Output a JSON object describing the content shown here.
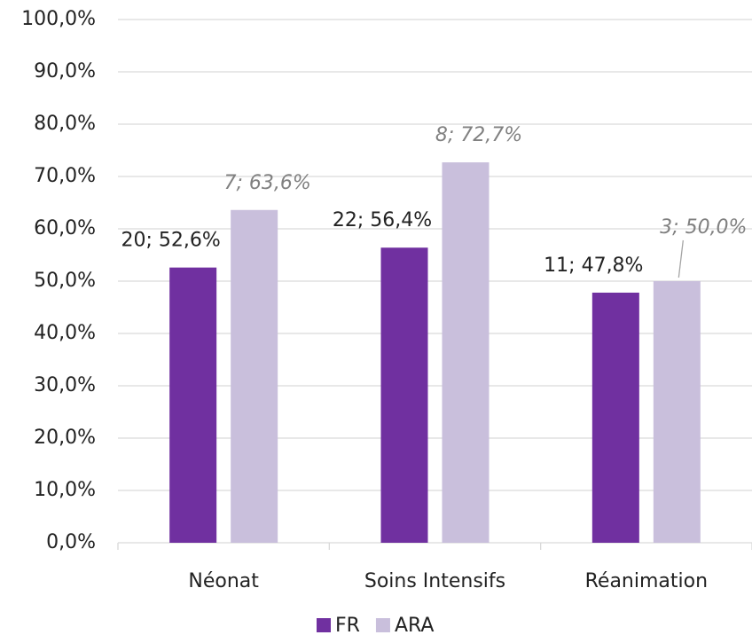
{
  "chart_data": {
    "type": "bar",
    "categories": [
      "Néonat",
      "Soins Intensifs",
      "Réanimation"
    ],
    "series": [
      {
        "name": "FR",
        "color": "#7030a0",
        "values": [
          52.6,
          56.4,
          47.8
        ],
        "value_labels": [
          "20; 52,6%",
          "22; 56,4%",
          "11; 47,8%"
        ]
      },
      {
        "name": "ARA",
        "color": "#c9bfdc",
        "values": [
          63.6,
          72.7,
          50.0
        ],
        "value_labels": [
          "7; 63,6%",
          "8; 72,7%",
          "3; 50,0%"
        ]
      }
    ],
    "ylim": [
      0,
      100
    ],
    "yticks": [
      {
        "value": 0,
        "label": "0,0%"
      },
      {
        "value": 10,
        "label": "10,0%"
      },
      {
        "value": 20,
        "label": "20,0%"
      },
      {
        "value": 30,
        "label": "30,0%"
      },
      {
        "value": 40,
        "label": "40,0%"
      },
      {
        "value": 50,
        "label": "50,0%"
      },
      {
        "value": 60,
        "label": "60,0%"
      },
      {
        "value": 70,
        "label": "70,0%"
      },
      {
        "value": 80,
        "label": "80,0%"
      },
      {
        "value": 90,
        "label": "90,0%"
      },
      {
        "value": 100,
        "label": "100,0%"
      }
    ],
    "grid": true,
    "legend": "bottom"
  }
}
